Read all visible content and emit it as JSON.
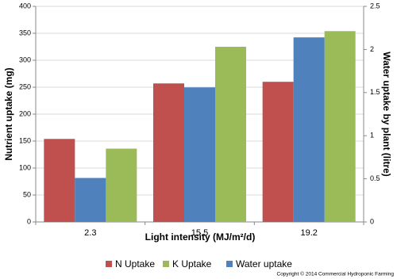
{
  "chart_data": {
    "type": "bar",
    "xlabel": "Light intensity (MJ/m²/d)",
    "ylabel": "Nutrient uptake (mg)",
    "y2label": "Water uptake by plant (litre)",
    "annotation": "Copyright © 2014 Commercial Hydroponic Farming",
    "categories": [
      "2.3",
      "15.5",
      "19.2"
    ],
    "series": [
      {
        "name": "N Uptake",
        "color": "#c0504d",
        "values": [
          154,
          257,
          260
        ]
      },
      {
        "name": "K Uptake",
        "color": "#9bbb59",
        "values": [
          136,
          325,
          354
        ]
      },
      {
        "name": "Water uptake",
        "color": "#4f81bd",
        "axis": "y2",
        "values": [
          0.51,
          1.56,
          2.14
        ]
      }
    ],
    "ylim": [
      0,
      400
    ],
    "yticks": [
      0,
      50,
      100,
      150,
      200,
      250,
      300,
      350,
      400
    ],
    "y2lim": [
      0,
      2.5
    ],
    "y2ticks": [
      0,
      0.5,
      1,
      1.5,
      2,
      2.5
    ],
    "grid": true,
    "legend": "bottom"
  }
}
